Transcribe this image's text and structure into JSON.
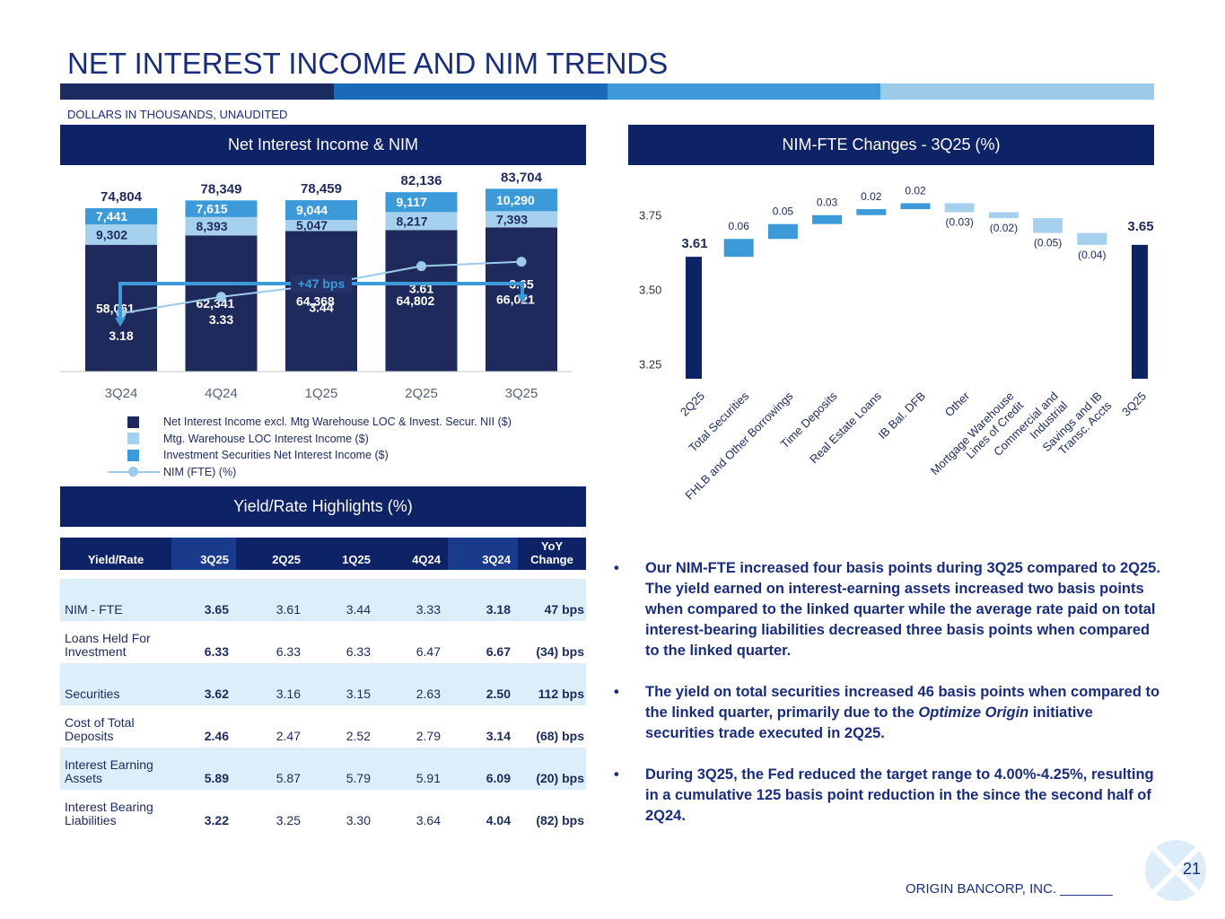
{
  "page": {
    "title": "NET INTEREST INCOME AND NIM TRENDS",
    "subtitle": "DOLLARS IN THOUSANDS, UNAUDITED",
    "footer": "ORIGIN BANCORP, INC. _______",
    "page_number": "21",
    "bar_colors": [
      "#1c2b5f",
      "#1a6ab7",
      "#3f99d8",
      "#9ccbe9"
    ]
  },
  "panels": {
    "nii_title": "Net Interest Income & NIM",
    "nimfte_title": "NIM-FTE Changes - 3Q25 (%)",
    "yield_title": "Yield/Rate Highlights (%)"
  },
  "chart_data": [
    {
      "type": "bar",
      "stacked": true,
      "title": "Net Interest Income & NIM",
      "categories": [
        "3Q24",
        "4Q24",
        "1Q25",
        "2Q25",
        "3Q25"
      ],
      "totals": [
        "74,804",
        "78,349",
        "78,459",
        "82,136",
        "83,704"
      ],
      "series": [
        {
          "name": "Net Interest Income excl. Mtg Warehouse LOC & Invest. Secur. NII ($)",
          "color": "#1f2a5c",
          "values": [
            58061,
            62341,
            64368,
            64802,
            66021
          ],
          "labels": [
            "58,061",
            "62,341",
            "64,368",
            "64,802",
            "66,021"
          ]
        },
        {
          "name": "Mtg. Warehouse LOC Interest Income ($)",
          "color": "#a6d1ee",
          "values": [
            9302,
            8393,
            5047,
            8217,
            7393
          ],
          "labels": [
            "9,302",
            "8,393",
            "5,047",
            "8,217",
            "7,393"
          ]
        },
        {
          "name": "Investment Securities Net Interest Income ($)",
          "color": "#3d9ad9",
          "values": [
            7441,
            7615,
            9044,
            9117,
            10290
          ],
          "labels": [
            "7,441",
            "7,615",
            "9,044",
            "9,117",
            "10,290"
          ]
        }
      ],
      "line": {
        "name": "NIM (FTE) (%)",
        "color": "#9ccbe9",
        "values": [
          3.18,
          3.33,
          3.44,
          3.61,
          3.65
        ],
        "labels": [
          "3.18",
          "3.33",
          "3.44",
          "3.61",
          "3.65"
        ]
      },
      "annotation": "+47 bps",
      "ylim": [
        0,
        90000
      ],
      "nim_ylim": [
        2.6,
        4.4
      ]
    },
    {
      "type": "bar",
      "waterfall": true,
      "title": "NIM-FTE Changes - 3Q25 (%)",
      "categories": [
        "2Q25",
        "Total Securities",
        "FHLB and Other Borrowings",
        "Time Deposits",
        "Real Estate Loans",
        "IB Bal. DFB",
        "Other",
        "Mortgage Warehouse Lines of Credit",
        "Commercial and Industrial",
        "Savings and IB Transc. Accts",
        "3Q25"
      ],
      "category_lines": [
        [
          "2Q25"
        ],
        [
          "Total Securities"
        ],
        [
          "FHLB and Other Borrowings"
        ],
        [
          "Time Deposits"
        ],
        [
          "Real Estate Loans"
        ],
        [
          "IB Bal. DFB"
        ],
        [
          "Other"
        ],
        [
          "Mortgage Warehouse",
          "Lines of Credit"
        ],
        [
          "Commercial and",
          "Industrial"
        ],
        [
          "Savings and IB",
          "Transc. Accts"
        ],
        [
          "3Q25"
        ]
      ],
      "start": 3.61,
      "end": 3.65,
      "changes": [
        0.06,
        0.05,
        0.03,
        0.02,
        0.02,
        -0.03,
        -0.02,
        -0.05,
        -0.04
      ],
      "labels": [
        "3.61",
        "0.06",
        "0.05",
        "0.03",
        "0.02",
        "0.02",
        "(0.03)",
        "(0.02)",
        "(0.05)",
        "(0.04)",
        "3.65"
      ],
      "ylim": [
        3.2,
        3.9
      ],
      "yticks": [
        3.25,
        3.5,
        3.75
      ],
      "ytick_labels": [
        "3.25",
        "3.50",
        "3.75"
      ],
      "colors": {
        "total": "#0e2266",
        "increase": "#3d9ad9",
        "decrease": "#a6d1ee"
      }
    }
  ],
  "yield_table": {
    "headers": [
      "Yield/Rate",
      "3Q25",
      "2Q25",
      "1Q25",
      "4Q24",
      "3Q24",
      "YoY",
      "Change"
    ],
    "rows": [
      {
        "label": "NIM - FTE",
        "label2": "",
        "values": [
          "3.65",
          "3.61",
          "3.44",
          "3.33",
          "3.18"
        ],
        "yoy": "47  bps"
      },
      {
        "label": "Loans Held For",
        "label2": "Investment",
        "values": [
          "6.33",
          "6.33",
          "6.33",
          "6.47",
          "6.67"
        ],
        "yoy": "(34) bps"
      },
      {
        "label": "Securities",
        "label2": "",
        "values": [
          "3.62",
          "3.16",
          "3.15",
          "2.63",
          "2.50"
        ],
        "yoy": "112  bps"
      },
      {
        "label": "Cost of Total",
        "label2": "Deposits",
        "values": [
          "2.46",
          "2.47",
          "2.52",
          "2.79",
          "3.14"
        ],
        "yoy": "(68) bps"
      },
      {
        "label": "Interest Earning",
        "label2": "Assets",
        "values": [
          "5.89",
          "5.87",
          "5.79",
          "5.91",
          "6.09"
        ],
        "yoy": "(20) bps"
      },
      {
        "label": "Interest Bearing",
        "label2": "Liabilities",
        "values": [
          "3.22",
          "3.25",
          "3.30",
          "3.64",
          "4.04"
        ],
        "yoy": "(82) bps"
      }
    ]
  },
  "bullets": [
    {
      "text": "Our NIM-FTE increased four basis points during 3Q25 compared to 2Q25. The yield earned on interest-earning assets increased two basis points when compared to the linked quarter while the average rate paid on total interest-bearing liabilities decreased three basis points when compared to the linked quarter."
    },
    {
      "text_a": "The yield on total securities increased 46 basis points when compared to the linked quarter, primarily due to the ",
      "text_em": "Optimize Origin",
      "text_b": " initiative securities trade executed in 2Q25."
    },
    {
      "text": "During 3Q25, the Fed reduced the target range to 4.00%-4.25%, resulting in a cumulative 125 basis point reduction in the since the second half of 2Q24."
    }
  ],
  "bullet_char": "•"
}
